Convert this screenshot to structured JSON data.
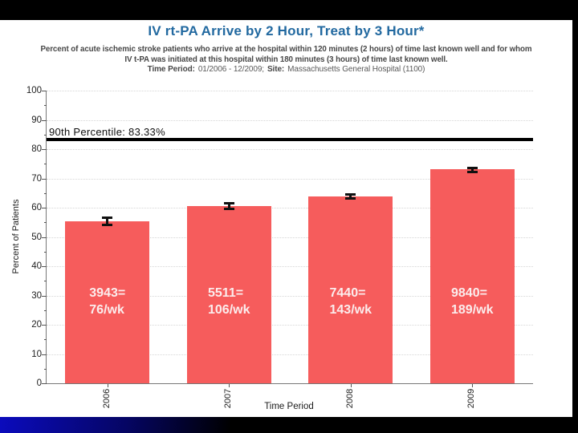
{
  "slide": {
    "title": "IV rt-PA Arrive by 2 Hour, Treat by 3 Hour*",
    "subtitle_line1": "Percent of acute ischemic stroke patients who arrive at the hospital within 120 minutes (2 hours) of time last known well and for whom",
    "subtitle_line2": "IV t-PA was initiated at this hospital within 180 minutes (3 hours) of time last known well.",
    "meta": {
      "time_period_label": "Time Period:",
      "time_period_value": "01/2006 - 12/2009;",
      "site_label": "Site:",
      "site_value": "Massachusetts General Hospital (1100)"
    }
  },
  "colors": {
    "title_blue": "#2269a0",
    "bar_fill": "#f65c5c",
    "bar_label_text": "#fbeded",
    "benchmark_line": "#000000",
    "bottom_band_blue": "#0b0bbd",
    "slide_border": "#000000"
  },
  "chart_data": {
    "type": "bar",
    "title": "IV rt-PA Arrive by 2 Hour, Treat by 3 Hour*",
    "xlabel": "Time Period",
    "ylabel": "Percent of Patients",
    "ylim": [
      0,
      100
    ],
    "ytick_step": 10,
    "grid": "horizontal-dotted",
    "legend": "none",
    "categories": [
      "2006",
      "2007",
      "2008",
      "2009"
    ],
    "values": [
      55.4,
      60.6,
      63.9,
      73.2
    ],
    "error_bars": [
      1.6,
      1.3,
      1.1,
      0.9
    ],
    "bar_labels": [
      [
        "3943=",
        "76/wk"
      ],
      [
        "5511=",
        "106/wk"
      ],
      [
        "7440=",
        "143/wk"
      ],
      [
        "9840=",
        "189/wk"
      ]
    ],
    "benchmark": {
      "label": "90th Percentile: 83.33%",
      "value": 83.33
    }
  }
}
